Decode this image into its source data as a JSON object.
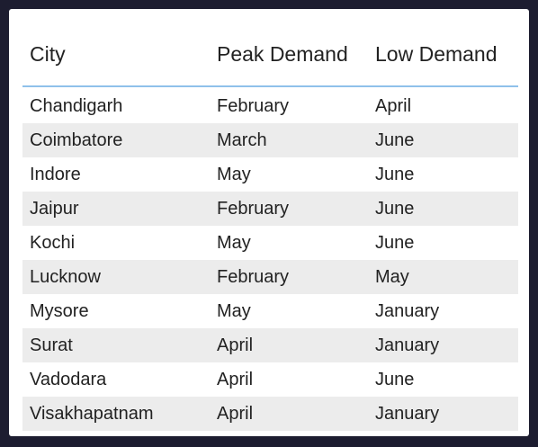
{
  "table": {
    "headers": {
      "city": "City",
      "peak": "Peak Demand",
      "low": "Low Demand"
    },
    "rows": [
      {
        "city": "Chandigarh",
        "peak": "February",
        "low": "April"
      },
      {
        "city": "Coimbatore",
        "peak": "March",
        "low": "June"
      },
      {
        "city": "Indore",
        "peak": "May",
        "low": "June"
      },
      {
        "city": "Jaipur",
        "peak": "February",
        "low": "June"
      },
      {
        "city": "Kochi",
        "peak": "May",
        "low": "June"
      },
      {
        "city": "Lucknow",
        "peak": "February",
        "low": "May"
      },
      {
        "city": "Mysore",
        "peak": "May",
        "low": "January"
      },
      {
        "city": "Surat",
        "peak": "April",
        "low": "January"
      },
      {
        "city": "Vadodara",
        "peak": "April",
        "low": "June"
      },
      {
        "city": "Visakhapatnam",
        "peak": "April",
        "low": "January"
      }
    ]
  }
}
